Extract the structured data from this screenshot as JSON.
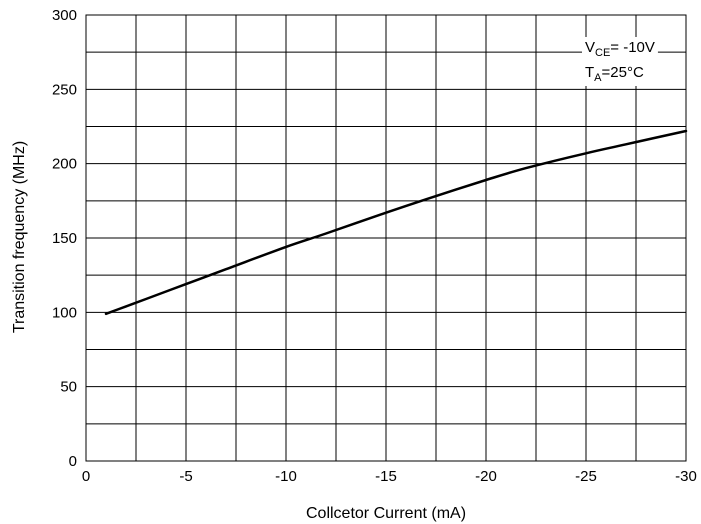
{
  "chart_data": {
    "type": "line",
    "xlabel": "Collcetor Current (mA)",
    "ylabel": "Transition frequency (MHz)",
    "xlim": [
      0,
      -30
    ],
    "ylim": [
      0,
      300
    ],
    "x_ticks": [
      "0",
      "-5",
      "-10",
      "-15",
      "-20",
      "-25",
      "-30"
    ],
    "y_ticks": [
      "0",
      "50",
      "100",
      "150",
      "200",
      "250",
      "300"
    ],
    "grid": true,
    "annotations": {
      "vce_main": "V",
      "vce_sub": "CE",
      "vce_value": "= -10V",
      "ta_main": "T",
      "ta_sub": "A",
      "ta_value": "=25°C"
    },
    "series": [
      {
        "color": "#000000",
        "x": [
          -1,
          -2,
          -3,
          -5,
          -7,
          -10,
          -12,
          -15,
          -17,
          -20,
          -22,
          -25,
          -27,
          -30
        ],
        "y": [
          99,
          104,
          109,
          119,
          129,
          144,
          153,
          167,
          176,
          189,
          197,
          207,
          213,
          222
        ]
      }
    ]
  }
}
